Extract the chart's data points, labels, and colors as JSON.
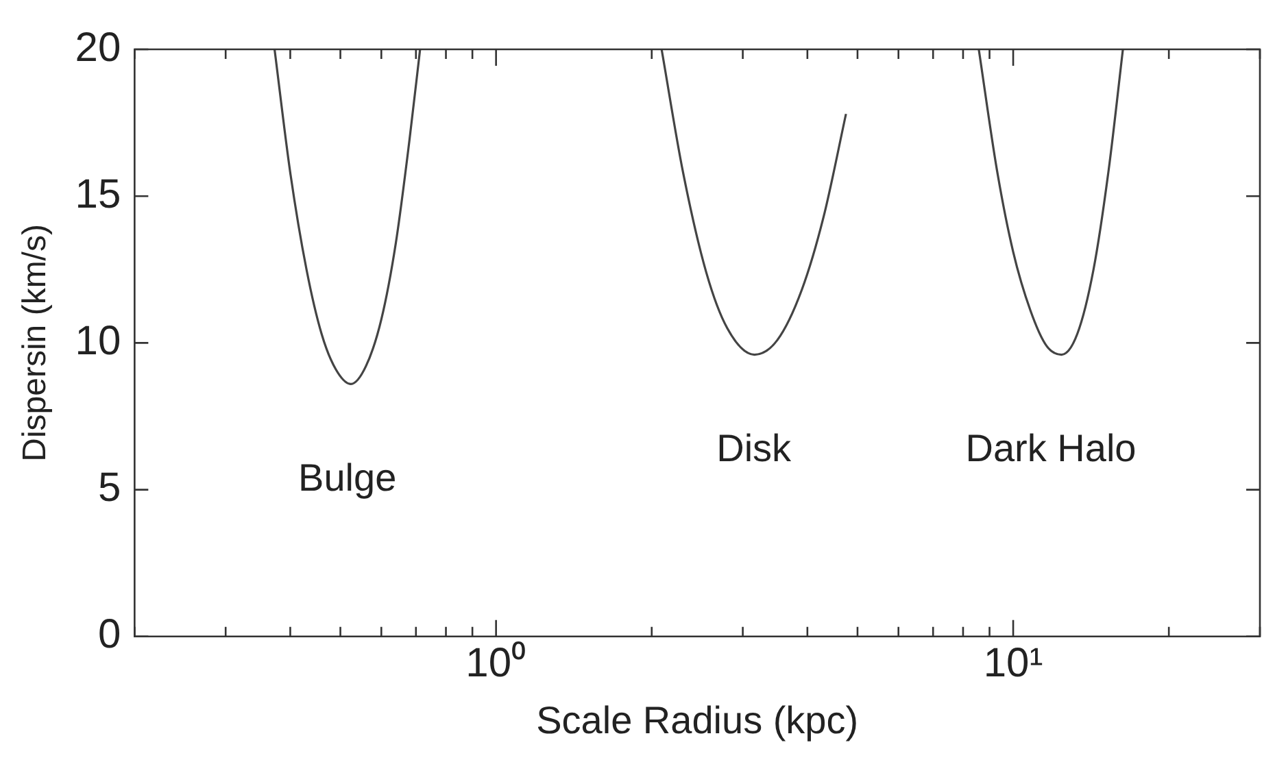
{
  "chart_data": {
    "type": "line",
    "xlabel": "Scale Radius (kpc)",
    "ylabel": "Dispersin (km/s)",
    "log": "x",
    "xlim": [
      0.2,
      30
    ],
    "ylim": [
      0,
      20
    ],
    "xticks": [
      {
        "value": 0.2,
        "label": null
      },
      {
        "value": 0.3,
        "label": null
      },
      {
        "value": 0.4,
        "label": null
      },
      {
        "value": 0.5,
        "label": null
      },
      {
        "value": 0.6,
        "label": null
      },
      {
        "value": 0.7,
        "label": null
      },
      {
        "value": 0.8,
        "label": null
      },
      {
        "value": 0.9,
        "label": null
      },
      {
        "value": 1,
        "label": "10⁰"
      },
      {
        "value": 2,
        "label": null
      },
      {
        "value": 3,
        "label": null
      },
      {
        "value": 4,
        "label": null
      },
      {
        "value": 5,
        "label": null
      },
      {
        "value": 6,
        "label": null
      },
      {
        "value": 7,
        "label": null
      },
      {
        "value": 8,
        "label": null
      },
      {
        "value": 9,
        "label": null
      },
      {
        "value": 10,
        "label": "10¹"
      },
      {
        "value": 20,
        "label": null
      },
      {
        "value": 30,
        "label": null
      }
    ],
    "yticks": [
      0,
      5,
      10,
      15,
      20
    ],
    "grid": false,
    "legend": false,
    "marker": "none",
    "line_style": "solid",
    "series": [
      {
        "name": "Bulge",
        "color": "#444444",
        "x": [
          0.373,
          0.4,
          0.43,
          0.46,
          0.49,
          0.524,
          0.56,
          0.6,
          0.64,
          0.68,
          0.713
        ],
        "values": [
          20,
          15.8,
          12.5,
          10.3,
          9.1,
          8.6,
          9.2,
          10.8,
          13.4,
          16.9,
          20
        ]
      },
      {
        "name": "Disk",
        "color": "#444444",
        "x": [
          2.09,
          2.3,
          2.55,
          2.8,
          3.16,
          3.5,
          3.9,
          4.3,
          4.75
        ],
        "values": [
          20,
          15.8,
          12.4,
          10.5,
          9.6,
          10.1,
          11.8,
          14.3,
          17.8
        ]
      },
      {
        "name": "Dark Halo",
        "color": "#444444",
        "x": [
          8.58,
          9.3,
          10,
          10.8,
          11.6,
          12.4,
          13.3,
          14.3,
          15.3,
          16.3
        ],
        "values": [
          20,
          15.9,
          13.1,
          11.1,
          9.9,
          9.6,
          10.3,
          12.5,
          15.9,
          20
        ]
      }
    ]
  }
}
